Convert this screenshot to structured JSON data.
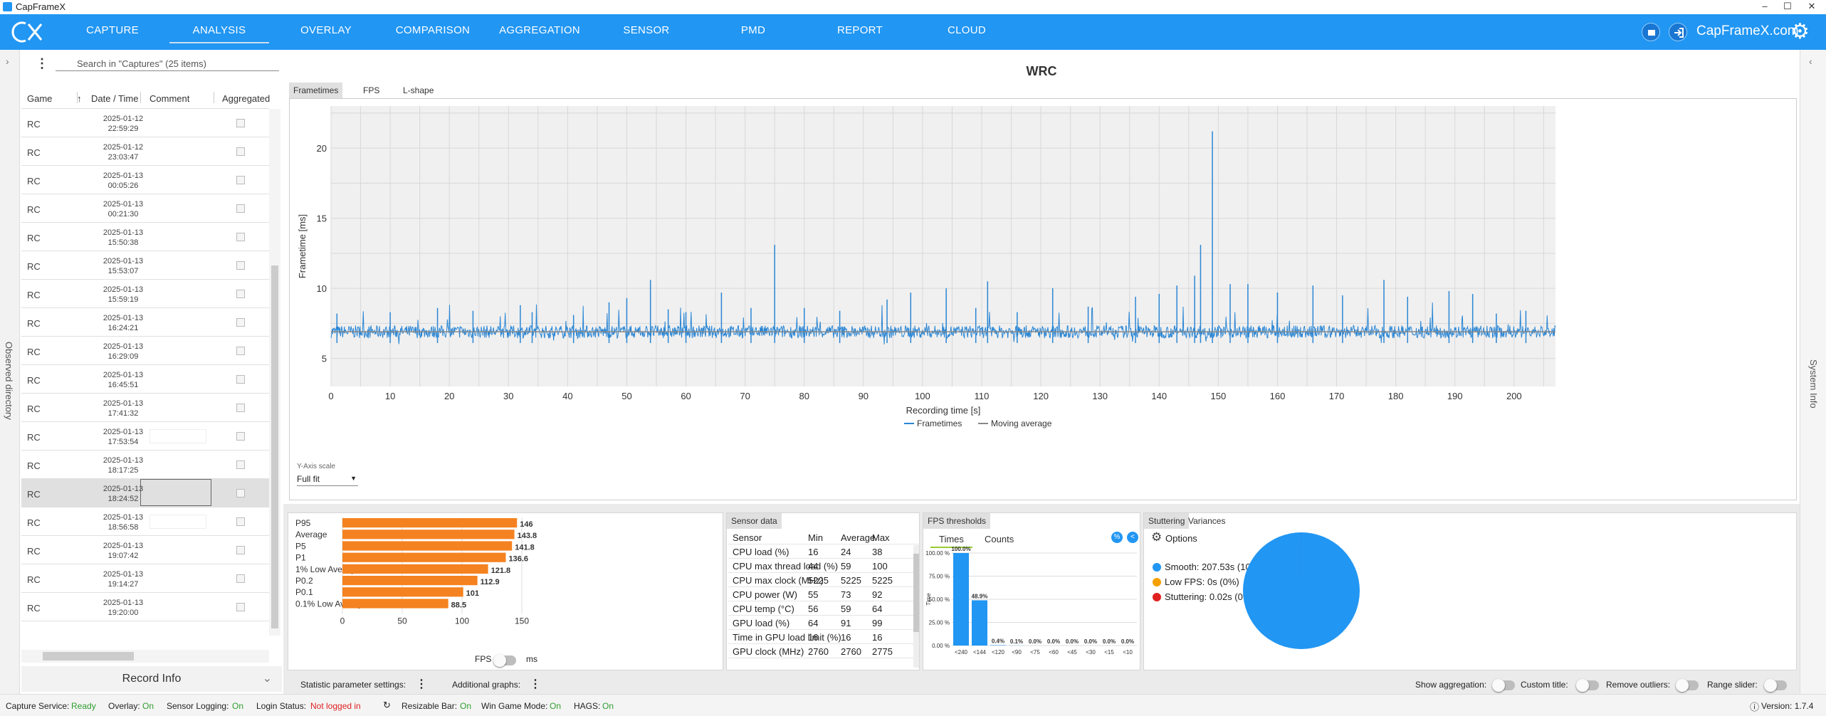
{
  "app": {
    "title": "CapFrameX"
  },
  "nav": {
    "tabs": [
      "CAPTURE",
      "ANALYSIS",
      "OVERLAY",
      "COMPARISON",
      "AGGREGATION",
      "SENSOR",
      "PMD",
      "REPORT",
      "CLOUD"
    ],
    "active": "ANALYSIS",
    "site": "CapFrameX.com"
  },
  "colors": {
    "accent": "#2196f3",
    "bar": "#f58220",
    "line": "#2a86d4",
    "moving_avg": "#888888",
    "smooth": "#2196f3",
    "lowfps": "#f5a000",
    "stutter": "#e02020"
  },
  "sidebar": {
    "observed_label": "Observed directory",
    "search_placeholder": "Search in \"Captures\" (25 items)",
    "columns": {
      "game": "Game",
      "date": "Date / Time",
      "comment": "Comment",
      "aggregated": "Aggregated"
    },
    "rows": [
      {
        "game": "RC",
        "date": "2025-01-12",
        "time": "22:59:29"
      },
      {
        "game": "RC",
        "date": "2025-01-12",
        "time": "23:03:47"
      },
      {
        "game": "RC",
        "date": "2025-01-13",
        "time": "00:05:26"
      },
      {
        "game": "RC",
        "date": "2025-01-13",
        "time": "00:21:30"
      },
      {
        "game": "RC",
        "date": "2025-01-13",
        "time": "15:50:38"
      },
      {
        "game": "RC",
        "date": "2025-01-13",
        "time": "15:53:07"
      },
      {
        "game": "RC",
        "date": "2025-01-13",
        "time": "15:59:19"
      },
      {
        "game": "RC",
        "date": "2025-01-13",
        "time": "16:24:21"
      },
      {
        "game": "RC",
        "date": "2025-01-13",
        "time": "16:29:09"
      },
      {
        "game": "RC",
        "date": "2025-01-13",
        "time": "16:45:51"
      },
      {
        "game": "RC",
        "date": "2025-01-13",
        "time": "17:41:32"
      },
      {
        "game": "RC",
        "date": "2025-01-13",
        "time": "17:53:54"
      },
      {
        "game": "RC",
        "date": "2025-01-13",
        "time": "18:17:25"
      },
      {
        "game": "RC",
        "date": "2025-01-13",
        "time": "18:24:52"
      },
      {
        "game": "RC",
        "date": "2025-01-13",
        "time": "18:56:58"
      },
      {
        "game": "RC",
        "date": "2025-01-13",
        "time": "19:07:42"
      },
      {
        "game": "RC",
        "date": "2025-01-13",
        "time": "19:14:27"
      },
      {
        "game": "RC",
        "date": "2025-01-13",
        "time": "19:20:00"
      }
    ],
    "record_info": "Record Info"
  },
  "analysis": {
    "title": "WRC",
    "subtabs": [
      "Frametimes",
      "FPS",
      "L-shape"
    ],
    "yaxis_scale_label": "Y-Axis scale",
    "yaxis_scale_value": "Full fit"
  },
  "chart_data": [
    {
      "type": "line",
      "title": "WRC",
      "xlabel": "Recording time [s]",
      "ylabel": "Frametime [ms]",
      "xlim": [
        0,
        207
      ],
      "ylim": [
        3,
        23
      ],
      "xticks": [
        0,
        10,
        20,
        30,
        40,
        50,
        60,
        70,
        80,
        90,
        100,
        110,
        120,
        130,
        140,
        150,
        160,
        170,
        180,
        190,
        200
      ],
      "yticks": [
        5,
        10,
        15,
        20
      ],
      "grid": true,
      "legend": [
        "Frametimes",
        "Moving average"
      ],
      "baseline_ms": 6.9,
      "moving_average_ms": 6.9,
      "spikes": [
        [
          1,
          8.2
        ],
        [
          10,
          8.3
        ],
        [
          18,
          8.6
        ],
        [
          24,
          8.4
        ],
        [
          32,
          8.8
        ],
        [
          34,
          8.3
        ],
        [
          41,
          8.1
        ],
        [
          47,
          9
        ],
        [
          50,
          9.3
        ],
        [
          54,
          10.6
        ],
        [
          57,
          8.5
        ],
        [
          60,
          8.3
        ],
        [
          66,
          9.7
        ],
        [
          71,
          8.6
        ],
        [
          75,
          13.1
        ],
        [
          80,
          8.6
        ],
        [
          86,
          8.4
        ],
        [
          94,
          9.2
        ],
        [
          98,
          9.7
        ],
        [
          104,
          10
        ],
        [
          109,
          8.6
        ],
        [
          111,
          10.5
        ],
        [
          116,
          8.3
        ],
        [
          122,
          10
        ],
        [
          128,
          8.7
        ],
        [
          136,
          9.4
        ],
        [
          140,
          9.6
        ],
        [
          143,
          10.2
        ],
        [
          146,
          10.9
        ],
        [
          147,
          13.1
        ],
        [
          149,
          21.2
        ],
        [
          152,
          10.3
        ],
        [
          155,
          10.3
        ],
        [
          160,
          9.7
        ],
        [
          166,
          10.2
        ],
        [
          171,
          9.5
        ],
        [
          178,
          10.6
        ],
        [
          182,
          9.4
        ],
        [
          189,
          9.8
        ],
        [
          193,
          9.6
        ],
        [
          197,
          8.2
        ],
        [
          202,
          8.4
        ]
      ]
    },
    {
      "type": "bar",
      "orientation": "horizontal",
      "categories": [
        "P95",
        "Average",
        "P5",
        "P1",
        "1% Low Average",
        "P0.2",
        "P0.1",
        "0.1% Low Average"
      ],
      "values": [
        146,
        143.8,
        141.8,
        136.6,
        121.8,
        112.9,
        101,
        88.5
      ],
      "xlim": [
        0,
        150
      ],
      "xticks": [
        0,
        50,
        100,
        150
      ]
    },
    {
      "type": "bar",
      "title": "FPS thresholds",
      "ylabel": "Time",
      "categories": [
        "<240",
        "<144",
        "<120",
        "<90",
        "<75",
        "<60",
        "<45",
        "<30",
        "<15",
        "<10"
      ],
      "values": [
        100.0,
        48.9,
        0.4,
        0.1,
        0.0,
        0.0,
        0.0,
        0.0,
        0.0,
        0.0
      ],
      "labels": [
        "100.0%",
        "48.9%",
        "0.4%",
        "0.1%",
        "0.0%",
        "0.0%",
        "0.0%",
        "0.0%",
        "0.0%",
        "0.0%"
      ],
      "ylim": [
        0,
        100
      ],
      "yticks": [
        "0.00 %",
        "25.00 %",
        "50.00 %",
        "75.00 %",
        "100.00 %"
      ]
    },
    {
      "type": "pie",
      "categories": [
        "Smooth",
        "Low FPS",
        "Stuttering"
      ],
      "values": [
        207.53,
        0,
        0.02
      ],
      "labels": [
        "Smooth:  207.53s (100%)",
        "Low FPS:  0s (0%)",
        "Stuttering:  0.02s (0%)"
      ]
    }
  ],
  "freq": {
    "switch_left": "FPS",
    "switch_right": "ms"
  },
  "sensor": {
    "tab": "Sensor data",
    "headers": [
      "Sensor",
      "Min",
      "Average",
      "Max"
    ],
    "rows": [
      [
        "CPU load (%)",
        "16",
        "24",
        "38"
      ],
      [
        "CPU max thread load (%)",
        "44",
        "59",
        "100"
      ],
      [
        "CPU max clock (MHz)",
        "5225",
        "5225",
        "5225"
      ],
      [
        "CPU power (W)",
        "55",
        "73",
        "92"
      ],
      [
        "CPU temp (°C)",
        "56",
        "59",
        "64"
      ],
      [
        "GPU load (%)",
        "64",
        "91",
        "99"
      ],
      [
        "Time in GPU load limit (%)",
        "16",
        "16",
        "16"
      ],
      [
        "GPU clock (MHz)",
        "2760",
        "2760",
        "2775"
      ]
    ]
  },
  "fps_thresholds": {
    "tab": "FPS thresholds",
    "subtabs": [
      "Times",
      "Counts"
    ]
  },
  "stutter": {
    "tabs": [
      "Stuttering",
      "Variances"
    ],
    "options": "Options"
  },
  "bottom_bar": {
    "stat_settings": "Statistic parameter settings:",
    "additional_graphs": "Additional graphs:",
    "show_aggregation": "Show aggregation:",
    "custom_title": "Custom title:",
    "remove_outliers": "Remove outliers:",
    "range_slider": "Range slider:"
  },
  "right_strip": {
    "label": "System Info"
  },
  "status": {
    "capture_service": "Capture Service:",
    "capture_service_val": "Ready",
    "overlay": "Overlay:",
    "overlay_val": "On",
    "sensor_logging": "Sensor Logging:",
    "sensor_logging_val": "On",
    "login": "Login Status:",
    "login_val": "Not logged in",
    "resizable_bar": "Resizable Bar:",
    "resizable_bar_val": "On",
    "win_game_mode": "Win Game Mode:",
    "win_game_mode_val": "On",
    "hags": "HAGS:",
    "hags_val": "On",
    "version": "Version: 1.7.4"
  }
}
